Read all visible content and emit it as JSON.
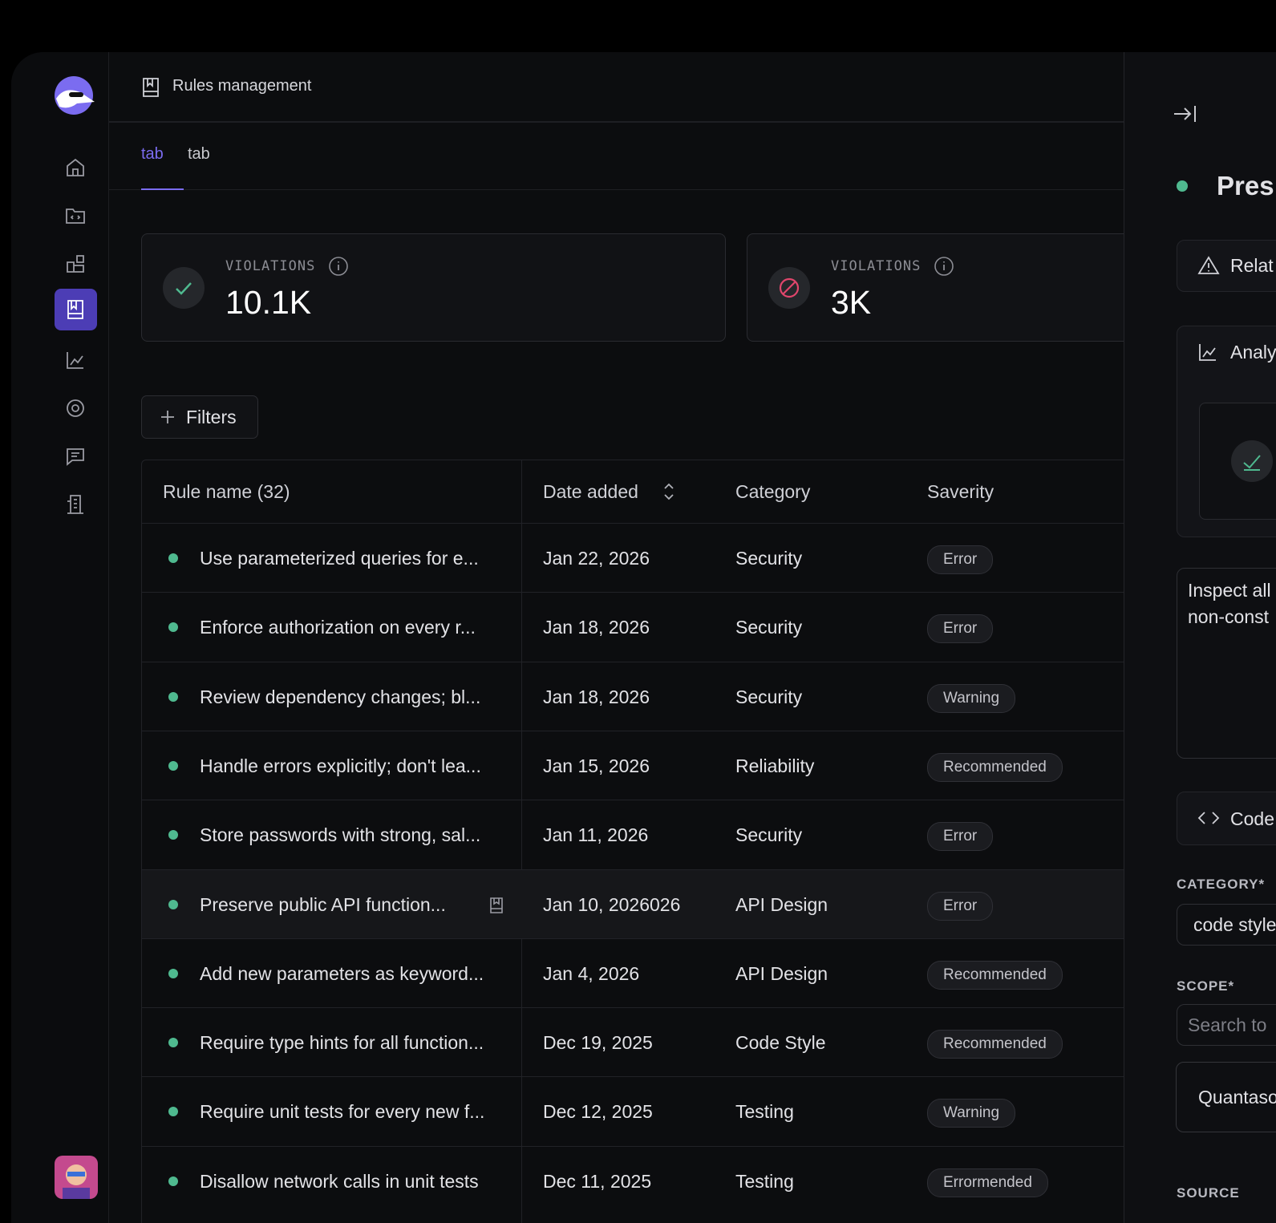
{
  "header": {
    "title": "Rules management"
  },
  "tabs": [
    "tab",
    "tab"
  ],
  "stats": [
    {
      "label": "VIOLATIONS",
      "value": "10.1K"
    },
    {
      "label": "VIOLATIONS",
      "value": "3K"
    }
  ],
  "filters": "Filters",
  "table": {
    "columns": [
      "Rule name (32)",
      "Date added",
      "Category",
      "Saverity"
    ],
    "rows": [
      [
        "Use parameterized queries for e...",
        "Jan 22, 2026",
        "Security",
        "Error"
      ],
      [
        "Enforce authorization on every r...",
        "Jan 18, 2026",
        "Security",
        "Error"
      ],
      [
        "Review dependency changes; bl...",
        "Jan 18, 2026",
        "Security",
        "Warning"
      ],
      [
        "Handle errors explicitly; don't lea...",
        "Jan 15, 2026",
        "Reliability",
        "Recommended"
      ],
      [
        "Store passwords with strong, sal...",
        "Jan 11, 2026",
        "Security",
        "Error"
      ],
      [
        "Preserve public API function...",
        "Jan 10, 2026026",
        "API Design",
        "Error"
      ],
      [
        "Add new parameters as keyword...",
        "Jan 4, 2026",
        "API Design",
        "Recommended"
      ],
      [
        "Require type hints for all function...",
        "Dec 19, 2025",
        "Code Style",
        "Recommended"
      ],
      [
        "Require unit tests for every new f...",
        "Dec 12, 2025",
        "Testing",
        "Warning"
      ],
      [
        "Disallow network calls in unit tests",
        "Dec 11, 2025",
        "Testing",
        "Errormended"
      ]
    ]
  },
  "panel": {
    "title": "Pres",
    "related": "Relat",
    "analytics": "Analy",
    "description": [
      "Inspect all",
      "non-const"
    ],
    "code": "Code",
    "category_label": "CATEGORY*",
    "category_value": "code style",
    "scope_label": "SCOPE*",
    "scope_placeholder": "Search to",
    "scope_item": "Quantaso",
    "source_label": "SOURCE"
  }
}
